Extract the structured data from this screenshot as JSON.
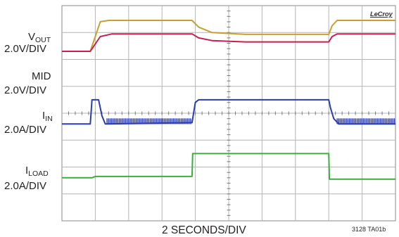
{
  "chart_data": {
    "type": "line",
    "grid": true,
    "brand": "LeCroy",
    "xlabel": "2 SECONDS/DIV",
    "figure_code": "3128 TA01b",
    "x_divisions": 10,
    "y_divisions": 8,
    "channels": [
      {
        "id": "vout",
        "name_main": "V",
        "name_sub": "OUT",
        "scale": "2.0V/DIV",
        "color": "#c8a030"
      },
      {
        "id": "mid",
        "name_main": "MID",
        "name_sub": "",
        "scale": "2.0V/DIV",
        "color": "#c81e50"
      },
      {
        "id": "iin",
        "name_main": "I",
        "name_sub": "IN",
        "scale": "2.0A/DIV",
        "color": "#2a3cae"
      },
      {
        "id": "iload",
        "name_main": "I",
        "name_sub": "LOAD",
        "scale": "2.0A/DIV",
        "color": "#3cae3c"
      }
    ],
    "series": [
      {
        "name": "vout",
        "x": [
          0,
          0.85,
          1.15,
          1.4,
          3.9,
          4.1,
          4.5,
          5.5,
          8.0,
          8.1,
          8.25,
          10
        ],
        "y": [
          6.3,
          6.3,
          7.4,
          7.45,
          7.45,
          7.2,
          7.0,
          6.93,
          6.93,
          7.25,
          7.45,
          7.45
        ]
      },
      {
        "name": "mid",
        "x": [
          0,
          0.85,
          1.15,
          1.5,
          3.9,
          4.1,
          4.5,
          5.5,
          8.0,
          8.1,
          8.25,
          10
        ],
        "y": [
          6.3,
          6.3,
          6.85,
          6.95,
          6.95,
          6.8,
          6.7,
          6.65,
          6.65,
          6.85,
          6.95,
          6.95
        ]
      },
      {
        "name": "iin",
        "x": [
          0,
          0.85,
          0.9,
          1.1,
          1.2,
          1.3,
          3.9,
          4.0,
          4.1,
          8.0,
          8.05,
          8.15,
          8.3,
          10
        ],
        "y": [
          3.6,
          3.6,
          4.5,
          4.5,
          3.9,
          3.6,
          3.65,
          4.4,
          4.5,
          4.5,
          4.2,
          3.8,
          3.6,
          3.6
        ],
        "ripple": [
          [
            1.35,
            3.9
          ],
          [
            8.25,
            10
          ]
        ]
      },
      {
        "name": "iload",
        "x": [
          0,
          0.9,
          1.0,
          3.9,
          3.92,
          8.0,
          8.02,
          10
        ],
        "y": [
          1.6,
          1.6,
          1.65,
          1.65,
          2.5,
          2.5,
          1.55,
          1.55
        ]
      }
    ]
  }
}
